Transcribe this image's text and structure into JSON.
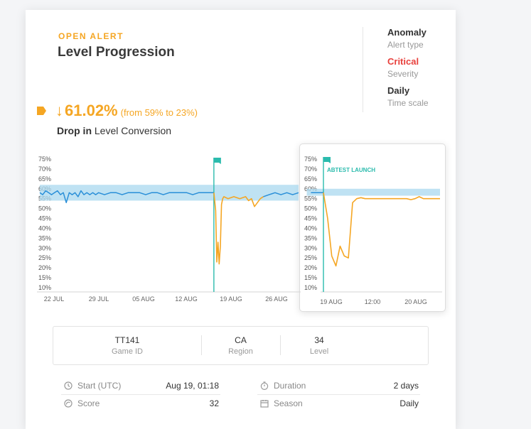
{
  "alert": {
    "kicker": "OPEN ALERT",
    "title": "Level Progression",
    "change_pct": "61.02%",
    "change_range": "(from 59% to 23%)",
    "drop_prefix": "Drop in",
    "drop_metric": "Level Conversion"
  },
  "side": {
    "type_value": "Anomaly",
    "type_label": "Alert type",
    "severity_value": "Critical",
    "severity_label": "Severity",
    "scale_value": "Daily",
    "scale_label": "Time scale"
  },
  "colors": {
    "accent_orange": "#f5a623",
    "critical_red": "#e8413d",
    "series_blue": "#2a8fd8",
    "band_blue": "#a9d8ef",
    "annotation_teal": "#2bbbad"
  },
  "chart_data": [
    {
      "type": "line",
      "x_ticks": [
        "22 JUL",
        "29 JUL",
        "05 AUG",
        "12 AUG",
        "19 AUG",
        "26 AUG"
      ],
      "y_ticks": [
        "75%",
        "70%",
        "65%",
        "60%",
        "55%",
        "50%",
        "45%",
        "40%",
        "35%",
        "30%",
        "25%",
        "20%",
        "15%",
        "10%"
      ],
      "ylim": [
        10,
        75
      ],
      "series": [
        {
          "role": "normal",
          "color": "#2a8fd8",
          "x": [
            0,
            0.5,
            1,
            1.5,
            2,
            2.5,
            3,
            3.5,
            4,
            4.5,
            5,
            5.5,
            6,
            6.5,
            7,
            7.5,
            8,
            8.5,
            9,
            9.5,
            10,
            11,
            12,
            13,
            14,
            15,
            16,
            17,
            18,
            19,
            20,
            21,
            22,
            23,
            24,
            25,
            26,
            27,
            28,
            29,
            29.6
          ],
          "y": [
            58,
            57,
            59,
            58,
            57,
            58,
            59,
            57,
            58,
            53,
            58,
            57,
            58,
            56,
            59,
            57,
            58,
            57,
            58,
            57,
            58,
            57,
            58,
            58,
            57,
            58,
            58,
            58,
            57,
            58,
            58,
            57,
            58,
            58,
            58,
            58,
            57,
            58,
            58,
            58,
            58
          ]
        },
        {
          "role": "anomaly",
          "color": "#f5a623",
          "x": [
            29.6,
            29.9,
            30.1,
            30.3,
            30.5,
            30.7,
            30.9,
            31.1,
            31.3,
            32,
            33,
            34,
            35,
            35.5,
            36,
            36.5,
            37,
            37.5,
            38
          ],
          "y": [
            58,
            49,
            23,
            33,
            22,
            31,
            52,
            55,
            56,
            55,
            56,
            55,
            56,
            54,
            55,
            51,
            53,
            55,
            56
          ]
        },
        {
          "role": "recovered",
          "color": "#2a8fd8",
          "x": [
            38,
            39,
            40,
            41,
            42,
            43,
            44
          ],
          "y": [
            56,
            57,
            58,
            57,
            58,
            57,
            58
          ]
        }
      ],
      "band": {
        "color": "#a9d8ef",
        "lower": 54,
        "upper": 62
      },
      "annotation": {
        "x": 29.6,
        "label": ""
      }
    },
    {
      "type": "line",
      "x_ticks": [
        "19 AUG",
        "12:00",
        "20 AUG"
      ],
      "y_ticks": [
        "75%",
        "70%",
        "65%",
        "60%",
        "55%",
        "50%",
        "45%",
        "40%",
        "35%",
        "30%",
        "25%",
        "20%",
        "15%",
        "10%"
      ],
      "ylim": [
        10,
        75
      ],
      "series": [
        {
          "role": "before",
          "color": "#2a8fd8",
          "x": [
            -3,
            0
          ],
          "y": [
            58,
            58
          ]
        },
        {
          "role": "anomaly",
          "color": "#f5a623",
          "x": [
            0,
            1,
            2,
            3,
            4,
            5,
            6,
            7,
            8,
            9,
            10,
            11,
            12,
            13,
            14,
            15,
            16,
            17,
            18,
            19,
            20,
            21,
            22,
            23,
            24,
            25,
            26,
            27,
            28
          ],
          "y": [
            58,
            45,
            26,
            21,
            31,
            26,
            25,
            53,
            55,
            55.5,
            55,
            55,
            55,
            55,
            55,
            55,
            55,
            55,
            55,
            55,
            55,
            54.5,
            55,
            56,
            55,
            55,
            55,
            55,
            55
          ]
        }
      ],
      "band": {
        "color": "#a9d8ef",
        "lower": 56.5,
        "upper": 60
      },
      "annotation": {
        "x": 0,
        "label": "ABTEST LAUNCH"
      }
    }
  ],
  "dimensions": [
    {
      "value": "TT141",
      "label": "Game ID"
    },
    {
      "value": "CA",
      "label": "Region"
    },
    {
      "value": "34",
      "label": "Level"
    }
  ],
  "details": {
    "start_label": "Start (UTC)",
    "start_value": "Aug 19, 01:18",
    "score_label": "Score",
    "score_value": "32",
    "duration_label": "Duration",
    "duration_value": "2 days",
    "season_label": "Season",
    "season_value": "Daily"
  }
}
